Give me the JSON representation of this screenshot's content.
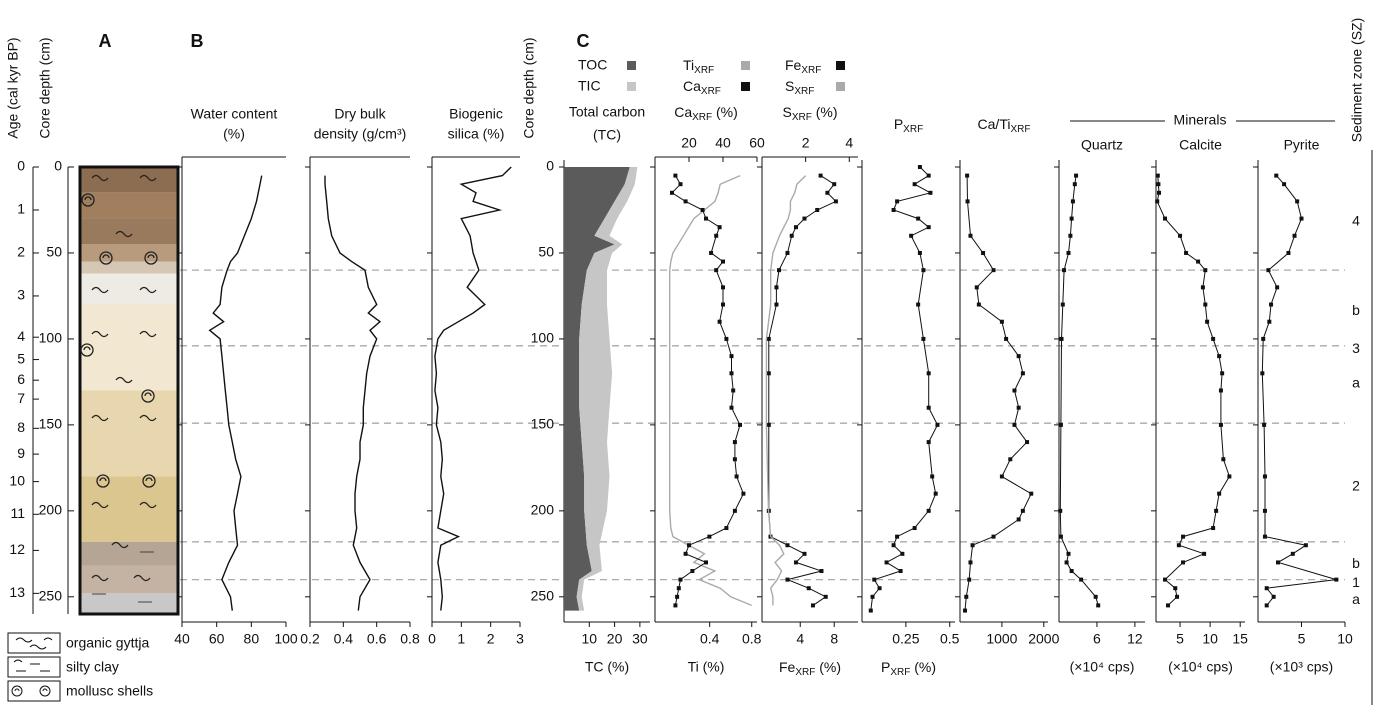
{
  "panel_labels": [
    "A",
    "B",
    "C"
  ],
  "age_axis": {
    "label": "Age (cal kyr BP)",
    "ticks": [
      0,
      1,
      2,
      3,
      4,
      5,
      6,
      7,
      8,
      9,
      10,
      11,
      12,
      13
    ],
    "depths": [
      0,
      25,
      50,
      75,
      99,
      112,
      124,
      135,
      152,
      167,
      183,
      202,
      223,
      248
    ]
  },
  "depth_axis": {
    "label": "Core depth (cm)",
    "ylim": [
      0,
      260
    ],
    "yticks": [
      0,
      50,
      100,
      150,
      200,
      250
    ]
  },
  "lithology": {
    "layers": [
      {
        "top": 0,
        "bottom": 15,
        "color": "#8d6d52"
      },
      {
        "top": 15,
        "bottom": 30,
        "color": "#a07e5e"
      },
      {
        "top": 30,
        "bottom": 45,
        "color": "#9a7a5c"
      },
      {
        "top": 45,
        "bottom": 55,
        "color": "#b89a7c"
      },
      {
        "top": 55,
        "bottom": 62,
        "color": "#d6c6b4"
      },
      {
        "top": 62,
        "bottom": 80,
        "color": "#eeeae4"
      },
      {
        "top": 80,
        "bottom": 130,
        "color": "#f2e8d2"
      },
      {
        "top": 130,
        "bottom": 180,
        "color": "#e8d6ae"
      },
      {
        "top": 180,
        "bottom": 218,
        "color": "#dcc690"
      },
      {
        "top": 218,
        "bottom": 232,
        "color": "#b4a594"
      },
      {
        "top": 232,
        "bottom": 248,
        "color": "#c4b3a2"
      },
      {
        "top": 248,
        "bottom": 260,
        "color": "#c8c8c8"
      }
    ],
    "legend": [
      "organic gyttja",
      "silty clay",
      "mollusc shells"
    ]
  },
  "zones": {
    "label": "Sediment zone (SZ)",
    "boundaries": [
      60,
      104,
      149,
      218,
      240
    ],
    "labels": [
      {
        "text": "4",
        "depth": 32
      },
      {
        "text": "b",
        "depth": 84
      },
      {
        "text": "3",
        "depth": 106
      },
      {
        "text": "a",
        "depth": 126
      },
      {
        "text": "2",
        "depth": 186
      },
      {
        "text": "b",
        "depth": 231
      },
      {
        "text": "1",
        "depth": 242
      },
      {
        "text": "a",
        "depth": 252
      }
    ]
  },
  "minerals_label": "Minerals",
  "chart_data": [
    {
      "type": "line",
      "title": "Water content",
      "title2": "(%)",
      "xlim": [
        40,
        100
      ],
      "xticks": [
        40,
        60,
        80,
        100
      ],
      "depth": [
        5,
        10,
        20,
        30,
        40,
        50,
        55,
        60,
        70,
        80,
        85,
        90,
        95,
        100,
        110,
        120,
        130,
        140,
        150,
        160,
        170,
        180,
        190,
        200,
        210,
        220,
        230,
        240,
        250,
        258
      ],
      "series": [
        {
          "color": "#111111",
          "values": [
            86,
            85,
            83,
            80,
            76,
            72,
            68,
            66,
            63,
            62,
            58,
            64,
            56,
            62,
            63,
            64,
            65,
            66,
            67,
            69,
            71,
            74,
            72,
            70,
            71,
            72,
            67,
            63,
            68,
            69
          ]
        }
      ]
    },
    {
      "type": "line",
      "title": "Dry bulk",
      "title2": "density (g/cm³)",
      "xlim": [
        0.2,
        0.8
      ],
      "xticks": [
        0.2,
        0.4,
        0.6,
        0.8
      ],
      "depth": [
        5,
        10,
        20,
        30,
        40,
        50,
        55,
        60,
        70,
        80,
        85,
        90,
        95,
        100,
        110,
        120,
        130,
        140,
        150,
        160,
        170,
        180,
        190,
        200,
        210,
        220,
        230,
        240,
        250,
        258
      ],
      "series": [
        {
          "color": "#111111",
          "values": [
            0.29,
            0.29,
            0.3,
            0.31,
            0.33,
            0.38,
            0.45,
            0.53,
            0.55,
            0.6,
            0.55,
            0.62,
            0.56,
            0.6,
            0.56,
            0.54,
            0.53,
            0.52,
            0.52,
            0.5,
            0.5,
            0.48,
            0.47,
            0.47,
            0.48,
            0.46,
            0.5,
            0.56,
            0.5,
            0.49
          ]
        }
      ]
    },
    {
      "type": "line",
      "title": "Biogenic",
      "title2": "silica (%)",
      "xlim": [
        0,
        3
      ],
      "xticks": [
        0,
        1,
        2,
        3
      ],
      "depth": [
        0,
        5,
        10,
        15,
        20,
        25,
        30,
        40,
        50,
        60,
        70,
        80,
        85,
        90,
        95,
        100,
        110,
        120,
        130,
        140,
        150,
        160,
        170,
        180,
        190,
        200,
        210,
        215,
        220,
        230,
        240,
        250,
        258
      ],
      "series": [
        {
          "color": "#111111",
          "values": [
            2.7,
            2.4,
            1.0,
            1.5,
            1.4,
            2.3,
            1.0,
            1.3,
            1.4,
            1.6,
            1.2,
            1.8,
            1.4,
            0.9,
            0.4,
            0.2,
            0.1,
            0.15,
            0.1,
            0.2,
            0.15,
            0.3,
            0.35,
            0.3,
            0.4,
            0.3,
            0.2,
            0.9,
            0.3,
            0.2,
            0.3,
            0.35,
            0.3
          ]
        }
      ]
    },
    {
      "type": "area",
      "title": "Total carbon",
      "title2": "(TC)",
      "xlabel": "TC (%)",
      "xlim": [
        0,
        34
      ],
      "xticks": [
        10,
        20,
        30
      ],
      "legend": true,
      "depth": [
        0,
        10,
        20,
        30,
        40,
        45,
        50,
        60,
        80,
        100,
        120,
        140,
        160,
        180,
        200,
        220,
        235,
        240,
        250,
        258
      ],
      "series": [
        {
          "name": "TOC",
          "color": "#5b5b5b",
          "values": [
            26,
            24,
            20,
            16,
            12,
            20,
            12,
            9,
            7,
            6,
            6,
            6,
            7,
            8,
            8,
            9,
            11,
            6,
            5,
            6
          ]
        },
        {
          "name": "TIC",
          "color": "#c6c6c6",
          "values": [
            3,
            4,
            5,
            5,
            6,
            3,
            7,
            8,
            10,
            12,
            13,
            12,
            10,
            10,
            9,
            5,
            4,
            2,
            2,
            2
          ]
        }
      ]
    },
    {
      "type": "line",
      "title": [
        "Ca",
        "XRF",
        " (%)"
      ],
      "xlabel": "Ti (%)",
      "xlim": [
        -0.12,
        0.85
      ],
      "xticks": [
        0.4,
        0.8
      ],
      "x2lim": [
        0,
        60
      ],
      "x2ticks": [
        20,
        40,
        60
      ],
      "legend": true,
      "depth": [
        5,
        10,
        15,
        20,
        25,
        30,
        35,
        40,
        50,
        55,
        60,
        70,
        80,
        90,
        100,
        110,
        120,
        130,
        140,
        150,
        160,
        170,
        180,
        190,
        200,
        210,
        215,
        220,
        225,
        230,
        235,
        240,
        245,
        250,
        255
      ],
      "series": [
        {
          "name": [
            "Ti",
            "XRF"
          ],
          "color": "#aaaaaa",
          "values": [
            0.69,
            0.5,
            0.48,
            0.45,
            0.35,
            0.25,
            0.2,
            0.15,
            0.05,
            0.03,
            0.02,
            0.02,
            0.02,
            0.02,
            0.02,
            0.02,
            0.02,
            0.02,
            0.02,
            0.02,
            0.02,
            0.02,
            0.02,
            0.02,
            0.02,
            0.03,
            0.05,
            0.2,
            0.35,
            0.25,
            0.45,
            0.3,
            0.5,
            0.6,
            0.8
          ]
        },
        {
          "name": [
            "Ca",
            "XRF"
          ],
          "color": "#111111",
          "axis": "x2",
          "markers": true,
          "values": [
            12,
            15,
            10,
            18,
            28,
            30,
            38,
            36,
            33,
            40,
            36,
            40,
            40,
            38,
            42,
            45,
            45,
            46,
            45,
            50,
            47,
            47,
            48,
            52,
            47,
            42,
            32,
            20,
            18,
            30,
            22,
            15,
            14,
            13,
            12
          ]
        }
      ]
    },
    {
      "type": "line",
      "title": [
        "S",
        "XRF",
        " (%)"
      ],
      "xlabel": [
        "Fe",
        "XRF",
        " (%)"
      ],
      "xlim": [
        -0.5,
        10.8
      ],
      "xticks": [
        4,
        8
      ],
      "x2lim": [
        0,
        4.4
      ],
      "x2ticks": [
        2,
        4
      ],
      "legend": true,
      "depth": [
        5,
        10,
        15,
        20,
        25,
        30,
        35,
        40,
        50,
        60,
        70,
        80,
        100,
        120,
        150,
        200,
        215,
        220,
        225,
        230,
        235,
        240,
        245,
        250,
        255
      ],
      "series": [
        {
          "name": [
            "Fe",
            "XRF"
          ],
          "color": "#111111",
          "markers": true,
          "values": [
            6.4,
            8.0,
            7.2,
            8.2,
            6,
            4.5,
            3.5,
            3,
            2.5,
            1.5,
            1.2,
            1.2,
            0.3,
            0.3,
            0.3,
            0.3,
            0.5,
            2.5,
            4.5,
            3.5,
            6.5,
            2.5,
            5,
            7,
            5.5
          ]
        },
        {
          "name": [
            "S",
            "XRF"
          ],
          "color": "#aaaaaa",
          "axis": "x2",
          "values": [
            2.0,
            1.6,
            1.5,
            1.3,
            1.3,
            1.2,
            1.0,
            0.8,
            0.5,
            0.4,
            0.4,
            0.4,
            0.2,
            0.2,
            0.2,
            0.3,
            0.4,
            0.8,
            1.0,
            0.6,
            0.9,
            0.7,
            0.4,
            0.5,
            0.5
          ]
        }
      ]
    },
    {
      "type": "line",
      "title": [
        "P",
        "XRF"
      ],
      "xlabel": [
        "P",
        "XRF",
        " (%)"
      ],
      "xlim": [
        0,
        0.53
      ],
      "xticks": [
        0.25,
        0.5
      ],
      "depth": [
        0,
        5,
        10,
        15,
        20,
        25,
        30,
        35,
        40,
        50,
        60,
        80,
        100,
        120,
        140,
        150,
        160,
        180,
        190,
        200,
        210,
        215,
        220,
        225,
        230,
        235,
        240,
        245,
        250,
        258
      ],
      "series": [
        {
          "color": "#111111",
          "markers": true,
          "values": [
            0.33,
            0.38,
            0.3,
            0.39,
            0.2,
            0.18,
            0.32,
            0.38,
            0.28,
            0.33,
            0.35,
            0.32,
            0.35,
            0.38,
            0.38,
            0.43,
            0.38,
            0.4,
            0.42,
            0.38,
            0.3,
            0.2,
            0.18,
            0.23,
            0.14,
            0.22,
            0.07,
            0.1,
            0.06,
            0.05
          ]
        }
      ]
    },
    {
      "type": "line",
      "title": [
        "Ca/Ti",
        "XRF"
      ],
      "xlim": [
        0,
        2100
      ],
      "xticks": [
        1000,
        2000
      ],
      "depth": [
        5,
        20,
        40,
        50,
        60,
        70,
        80,
        90,
        100,
        110,
        120,
        130,
        140,
        150,
        160,
        170,
        180,
        190,
        200,
        205,
        215,
        220,
        230,
        240,
        250,
        258
      ],
      "series": [
        {
          "color": "#111111",
          "markers": true,
          "values": [
            170,
            180,
            250,
            550,
            800,
            400,
            450,
            1000,
            1100,
            1400,
            1500,
            1300,
            1400,
            1300,
            1600,
            1200,
            1000,
            1700,
            1500,
            1400,
            800,
            300,
            250,
            220,
            150,
            120
          ]
        }
      ]
    },
    {
      "type": "line",
      "title": "Quartz",
      "xlabel": "(×10⁴ cps)",
      "xlim": [
        0,
        13.6
      ],
      "xticks": [
        6,
        12
      ],
      "depth": [
        5,
        10,
        20,
        30,
        40,
        50,
        60,
        80,
        100,
        150,
        200,
        215,
        225,
        230,
        235,
        240,
        250,
        255
      ],
      "series": [
        {
          "color": "#111111",
          "markers": true,
          "values": [
            2.7,
            2.5,
            2.2,
            2.0,
            1.8,
            1.5,
            0.8,
            0.6,
            0.4,
            0.3,
            0.2,
            0.3,
            1.5,
            1.2,
            2.0,
            3.5,
            5.8,
            6.2
          ]
        }
      ]
    },
    {
      "type": "line",
      "title": "Calcite",
      "xlabel": "(×10⁴ cps)",
      "xlim": [
        1,
        15.8
      ],
      "xticks": [
        5,
        10,
        15
      ],
      "depth": [
        5,
        10,
        15,
        20,
        30,
        40,
        50,
        55,
        60,
        70,
        80,
        90,
        100,
        110,
        120,
        130,
        150,
        170,
        180,
        190,
        200,
        210,
        215,
        220,
        225,
        230,
        240,
        245,
        250,
        255
      ],
      "series": [
        {
          "color": "#111111",
          "markers": true,
          "values": [
            1.3,
            1.4,
            1.5,
            1.2,
            2.5,
            5,
            6,
            8,
            9.2,
            8.8,
            9.2,
            9.5,
            10.5,
            11.5,
            12,
            11.8,
            11.8,
            12.2,
            13.2,
            11.5,
            11,
            10.5,
            5.5,
            4.8,
            9,
            5.5,
            2.5,
            4.2,
            4.5,
            3
          ]
        }
      ]
    },
    {
      "type": "line",
      "title": "Pyrite",
      "xlabel": "(×10³ cps)",
      "xlim": [
        0,
        10
      ],
      "xticks": [
        5,
        10
      ],
      "depth": [
        5,
        10,
        20,
        30,
        40,
        50,
        60,
        70,
        80,
        90,
        100,
        120,
        150,
        180,
        200,
        215,
        220,
        225,
        230,
        240,
        245,
        250,
        255
      ],
      "series": [
        {
          "color": "#111111",
          "markers": true,
          "values": [
            2.1,
            3,
            4.5,
            5,
            4.2,
            3.5,
            1.2,
            2.2,
            1.5,
            1.3,
            0.6,
            0.5,
            0.7,
            0.8,
            0.8,
            0.8,
            5.5,
            4,
            2.3,
            9,
            1,
            1.8,
            1
          ]
        }
      ]
    }
  ]
}
